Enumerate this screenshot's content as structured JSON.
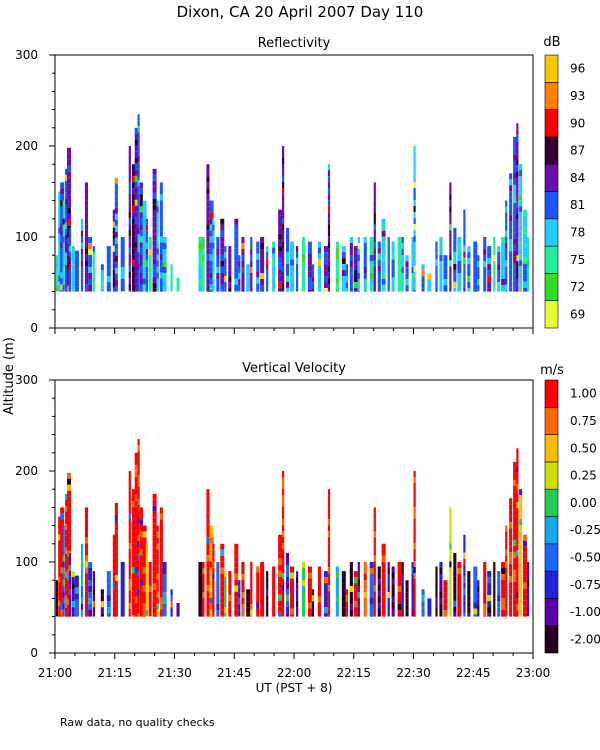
{
  "title": "Dixon, CA 20 April 2007  Day 110",
  "footnote": "Raw data, no quality checks",
  "chart_data": [
    {
      "type": "heatmap",
      "title": "Reflectivity",
      "ylabel": "Altitude (m)",
      "ylim": [
        0,
        300
      ],
      "yticks": [
        "0",
        "100",
        "200",
        "300"
      ],
      "xlim_minutes": [
        0,
        120
      ],
      "colorbar": {
        "unit": "dB",
        "labels": [
          "69",
          "72",
          "75",
          "78",
          "81",
          "84",
          "87",
          "90",
          "93",
          "96"
        ],
        "colors": [
          "#e6ff33",
          "#33dd22",
          "#22ee99",
          "#22ccff",
          "#1a55ff",
          "#6a0dad",
          "#330033",
          "#ff0000",
          "#ff7f00",
          "#ffc400"
        ]
      },
      "echoes": [
        {
          "t": 0.2,
          "top": 80,
          "dom": 2
        },
        {
          "t": 0.8,
          "top": 150,
          "dom": 3
        },
        {
          "t": 1.3,
          "top": 160,
          "dom": 4
        },
        {
          "t": 1.9,
          "top": 140,
          "dom": 3
        },
        {
          "t": 2.5,
          "top": 175,
          "dom": 4
        },
        {
          "t": 3.0,
          "top": 198,
          "dom": 5
        },
        {
          "t": 3.5,
          "top": 110,
          "dom": 4
        },
        {
          "t": 4.2,
          "top": 90,
          "dom": 3
        },
        {
          "t": 5.0,
          "top": 85,
          "dom": 4
        },
        {
          "t": 6.5,
          "top": 120,
          "dom": 4
        },
        {
          "t": 7.5,
          "top": 160,
          "dom": 5
        },
        {
          "t": 8.3,
          "top": 100,
          "dom": 4
        },
        {
          "t": 9.5,
          "top": 90,
          "dom": 3
        },
        {
          "t": 11.5,
          "top": 70,
          "dom": 3
        },
        {
          "t": 13.0,
          "top": 90,
          "dom": 4
        },
        {
          "t": 14.5,
          "top": 130,
          "dom": 5
        },
        {
          "t": 15.0,
          "top": 165,
          "dom": 4
        },
        {
          "t": 16.5,
          "top": 100,
          "dom": 4
        },
        {
          "t": 18.5,
          "top": 200,
          "dom": 5
        },
        {
          "t": 19.3,
          "top": 180,
          "dom": 6
        },
        {
          "t": 20.0,
          "top": 220,
          "dom": 5
        },
        {
          "t": 20.7,
          "top": 235,
          "dom": 4
        },
        {
          "t": 21.3,
          "top": 160,
          "dom": 5
        },
        {
          "t": 22.0,
          "top": 140,
          "dom": 3
        },
        {
          "t": 22.8,
          "top": 120,
          "dom": 4
        },
        {
          "t": 23.5,
          "top": 100,
          "dom": 2
        },
        {
          "t": 24.5,
          "top": 175,
          "dom": 5
        },
        {
          "t": 25.5,
          "top": 140,
          "dom": 3
        },
        {
          "t": 26.3,
          "top": 160,
          "dom": 4
        },
        {
          "t": 27.0,
          "top": 100,
          "dom": 3
        },
        {
          "t": 29.0,
          "top": 70,
          "dom": 2
        },
        {
          "t": 30.5,
          "top": 55,
          "dom": 2
        },
        {
          "t": 36.0,
          "top": 100,
          "dom": 2
        },
        {
          "t": 37.0,
          "top": 100,
          "dom": 2
        },
        {
          "t": 38.0,
          "top": 180,
          "dom": 5
        },
        {
          "t": 38.8,
          "top": 140,
          "dom": 4
        },
        {
          "t": 39.5,
          "top": 120,
          "dom": 3
        },
        {
          "t": 40.5,
          "top": 100,
          "dom": 4
        },
        {
          "t": 41.5,
          "top": 120,
          "dom": 5
        },
        {
          "t": 42.5,
          "top": 90,
          "dom": 4
        },
        {
          "t": 43.5,
          "top": 90,
          "dom": 5
        },
        {
          "t": 45.0,
          "top": 120,
          "dom": 4
        },
        {
          "t": 46.0,
          "top": 80,
          "dom": 4
        },
        {
          "t": 46.8,
          "top": 100,
          "dom": 5
        },
        {
          "t": 48.0,
          "top": 70,
          "dom": 3
        },
        {
          "t": 49.0,
          "top": 100,
          "dom": 5
        },
        {
          "t": 50.5,
          "top": 95,
          "dom": 4
        },
        {
          "t": 51.5,
          "top": 100,
          "dom": 5
        },
        {
          "t": 53.0,
          "top": 90,
          "dom": 4
        },
        {
          "t": 54.5,
          "top": 95,
          "dom": 3
        },
        {
          "t": 56.0,
          "top": 130,
          "dom": 5
        },
        {
          "t": 57.0,
          "top": 200,
          "dom": 5
        },
        {
          "t": 58.0,
          "top": 110,
          "dom": 4
        },
        {
          "t": 59.0,
          "top": 95,
          "dom": 3
        },
        {
          "t": 60.5,
          "top": 90,
          "dom": 4
        },
        {
          "t": 62.0,
          "top": 100,
          "dom": 2
        },
        {
          "t": 63.5,
          "top": 95,
          "dom": 5
        },
        {
          "t": 64.5,
          "top": 70,
          "dom": 4
        },
        {
          "t": 66.0,
          "top": 95,
          "dom": 3
        },
        {
          "t": 67.5,
          "top": 90,
          "dom": 5
        },
        {
          "t": 68.5,
          "top": 180,
          "dom": 5
        },
        {
          "t": 70.5,
          "top": 95,
          "dom": 2
        },
        {
          "t": 72.0,
          "top": 90,
          "dom": 3
        },
        {
          "t": 73.0,
          "top": 70,
          "dom": 4
        },
        {
          "t": 74.0,
          "top": 100,
          "dom": 4
        },
        {
          "t": 75.0,
          "top": 90,
          "dom": 5
        },
        {
          "t": 76.0,
          "top": 100,
          "dom": 3
        },
        {
          "t": 77.5,
          "top": 100,
          "dom": 4
        },
        {
          "t": 79.0,
          "top": 100,
          "dom": 2
        },
        {
          "t": 80.0,
          "top": 160,
          "dom": 5
        },
        {
          "t": 81.0,
          "top": 95,
          "dom": 4
        },
        {
          "t": 82.0,
          "top": 120,
          "dom": 3
        },
        {
          "t": 83.5,
          "top": 100,
          "dom": 4
        },
        {
          "t": 84.5,
          "top": 95,
          "dom": 3
        },
        {
          "t": 86.0,
          "top": 100,
          "dom": 2
        },
        {
          "t": 87.0,
          "top": 100,
          "dom": 3
        },
        {
          "t": 88.0,
          "top": 80,
          "dom": 4
        },
        {
          "t": 89.5,
          "top": 100,
          "dom": 3
        },
        {
          "t": 90.0,
          "top": 200,
          "dom": 3
        },
        {
          "t": 92.0,
          "top": 70,
          "dom": 4
        },
        {
          "t": 93.5,
          "top": 60,
          "dom": 3
        },
        {
          "t": 95.5,
          "top": 95,
          "dom": 4
        },
        {
          "t": 96.5,
          "top": 100,
          "dom": 3
        },
        {
          "t": 97.5,
          "top": 80,
          "dom": 4
        },
        {
          "t": 99.0,
          "top": 160,
          "dom": 5
        },
        {
          "t": 100.0,
          "top": 110,
          "dom": 4
        },
        {
          "t": 101.0,
          "top": 100,
          "dom": 3
        },
        {
          "t": 102.5,
          "top": 130,
          "dom": 4
        },
        {
          "t": 103.5,
          "top": 90,
          "dom": 3
        },
        {
          "t": 105.0,
          "top": 95,
          "dom": 4
        },
        {
          "t": 106.0,
          "top": 80,
          "dom": 3
        },
        {
          "t": 107.5,
          "top": 100,
          "dom": 4
        },
        {
          "t": 108.5,
          "top": 90,
          "dom": 4
        },
        {
          "t": 110.0,
          "top": 100,
          "dom": 2
        },
        {
          "t": 111.0,
          "top": 90,
          "dom": 4
        },
        {
          "t": 112.0,
          "top": 100,
          "dom": 3
        },
        {
          "t": 113.0,
          "top": 140,
          "dom": 4
        },
        {
          "t": 114.0,
          "top": 170,
          "dom": 4
        },
        {
          "t": 115.0,
          "top": 210,
          "dom": 4
        },
        {
          "t": 115.8,
          "top": 225,
          "dom": 5
        },
        {
          "t": 116.5,
          "top": 180,
          "dom": 3
        },
        {
          "t": 117.5,
          "top": 130,
          "dom": 3
        },
        {
          "t": 118.5,
          "top": 100,
          "dom": 2
        }
      ]
    },
    {
      "type": "heatmap",
      "title": "Vertical Velocity",
      "ylabel": "Altitude (m)",
      "ylim": [
        0,
        300
      ],
      "yticks": [
        "0",
        "100",
        "200",
        "300"
      ],
      "xlim_minutes": [
        0,
        120
      ],
      "xticks": [
        "21:00",
        "21:15",
        "21:30",
        "21:45",
        "22:00",
        "22:15",
        "22:30",
        "22:45",
        "23:00"
      ],
      "xlabel": "UT  (PST + 8)",
      "colorbar": {
        "unit": "m/s",
        "labels": [
          "-2.00",
          "-1.00",
          "-0.75",
          "-0.50",
          "-0.25",
          "0.00",
          "0.25",
          "0.50",
          "0.75",
          "1.00"
        ],
        "colors": [
          "#2a0020",
          "#5a00aa",
          "#2222dd",
          "#1a66ff",
          "#11aaee",
          "#22cc55",
          "#ccdd00",
          "#ffbb00",
          "#ff6600",
          "#ff0000"
        ]
      },
      "echoes": [
        {
          "t": 0.2,
          "top": 80,
          "dom": 0
        },
        {
          "t": 0.8,
          "top": 150,
          "dom": 9
        },
        {
          "t": 1.3,
          "top": 160,
          "dom": 9
        },
        {
          "t": 1.9,
          "top": 140,
          "dom": 3
        },
        {
          "t": 2.5,
          "top": 175,
          "dom": 9
        },
        {
          "t": 3.0,
          "top": 198,
          "dom": 9
        },
        {
          "t": 3.5,
          "top": 110,
          "dom": 2
        },
        {
          "t": 4.2,
          "top": 90,
          "dom": 1
        },
        {
          "t": 5.0,
          "top": 85,
          "dom": 3
        },
        {
          "t": 6.5,
          "top": 120,
          "dom": 4
        },
        {
          "t": 7.5,
          "top": 160,
          "dom": 9
        },
        {
          "t": 8.3,
          "top": 100,
          "dom": 2
        },
        {
          "t": 9.5,
          "top": 90,
          "dom": 1
        },
        {
          "t": 11.5,
          "top": 70,
          "dom": 0
        },
        {
          "t": 13.0,
          "top": 90,
          "dom": 3
        },
        {
          "t": 14.5,
          "top": 130,
          "dom": 9
        },
        {
          "t": 15.0,
          "top": 165,
          "dom": 9
        },
        {
          "t": 16.5,
          "top": 100,
          "dom": 2
        },
        {
          "t": 18.5,
          "top": 200,
          "dom": 9
        },
        {
          "t": 19.3,
          "top": 180,
          "dom": 9
        },
        {
          "t": 20.0,
          "top": 220,
          "dom": 9
        },
        {
          "t": 20.7,
          "top": 235,
          "dom": 9
        },
        {
          "t": 21.3,
          "top": 160,
          "dom": 9
        },
        {
          "t": 22.0,
          "top": 140,
          "dom": 9
        },
        {
          "t": 22.8,
          "top": 120,
          "dom": 6
        },
        {
          "t": 23.5,
          "top": 100,
          "dom": 9
        },
        {
          "t": 24.5,
          "top": 175,
          "dom": 9
        },
        {
          "t": 25.5,
          "top": 140,
          "dom": 9
        },
        {
          "t": 26.3,
          "top": 160,
          "dom": 9
        },
        {
          "t": 27.0,
          "top": 100,
          "dom": 3
        },
        {
          "t": 29.0,
          "top": 70,
          "dom": 2
        },
        {
          "t": 30.5,
          "top": 55,
          "dom": 1
        },
        {
          "t": 36.0,
          "top": 100,
          "dom": 0
        },
        {
          "t": 37.0,
          "top": 100,
          "dom": 9
        },
        {
          "t": 38.0,
          "top": 180,
          "dom": 9
        },
        {
          "t": 38.8,
          "top": 140,
          "dom": 7
        },
        {
          "t": 39.5,
          "top": 120,
          "dom": 9
        },
        {
          "t": 40.5,
          "top": 100,
          "dom": 3
        },
        {
          "t": 41.5,
          "top": 120,
          "dom": 9
        },
        {
          "t": 42.5,
          "top": 90,
          "dom": 5
        },
        {
          "t": 43.5,
          "top": 90,
          "dom": 9
        },
        {
          "t": 45.0,
          "top": 120,
          "dom": 9
        },
        {
          "t": 46.0,
          "top": 80,
          "dom": 2
        },
        {
          "t": 46.8,
          "top": 100,
          "dom": 9
        },
        {
          "t": 48.0,
          "top": 70,
          "dom": 0
        },
        {
          "t": 49.0,
          "top": 100,
          "dom": 9
        },
        {
          "t": 50.5,
          "top": 95,
          "dom": 9
        },
        {
          "t": 51.5,
          "top": 100,
          "dom": 9
        },
        {
          "t": 53.0,
          "top": 90,
          "dom": 0
        },
        {
          "t": 54.5,
          "top": 95,
          "dom": 9
        },
        {
          "t": 56.0,
          "top": 130,
          "dom": 9
        },
        {
          "t": 57.0,
          "top": 200,
          "dom": 9
        },
        {
          "t": 58.0,
          "top": 110,
          "dom": 2
        },
        {
          "t": 59.0,
          "top": 95,
          "dom": 9
        },
        {
          "t": 60.5,
          "top": 90,
          "dom": 1
        },
        {
          "t": 62.0,
          "top": 100,
          "dom": 5
        },
        {
          "t": 63.5,
          "top": 95,
          "dom": 9
        },
        {
          "t": 64.5,
          "top": 70,
          "dom": 0
        },
        {
          "t": 66.0,
          "top": 95,
          "dom": 9
        },
        {
          "t": 67.5,
          "top": 90,
          "dom": 2
        },
        {
          "t": 68.5,
          "top": 180,
          "dom": 9
        },
        {
          "t": 70.5,
          "top": 95,
          "dom": 4
        },
        {
          "t": 72.0,
          "top": 90,
          "dom": 0
        },
        {
          "t": 73.0,
          "top": 70,
          "dom": 9
        },
        {
          "t": 74.0,
          "top": 100,
          "dom": 0
        },
        {
          "t": 75.0,
          "top": 90,
          "dom": 9
        },
        {
          "t": 76.0,
          "top": 100,
          "dom": 1
        },
        {
          "t": 77.5,
          "top": 100,
          "dom": 8
        },
        {
          "t": 79.0,
          "top": 100,
          "dom": 3
        },
        {
          "t": 80.0,
          "top": 160,
          "dom": 9
        },
        {
          "t": 81.0,
          "top": 95,
          "dom": 0
        },
        {
          "t": 82.0,
          "top": 120,
          "dom": 9
        },
        {
          "t": 83.5,
          "top": 100,
          "dom": 2
        },
        {
          "t": 84.5,
          "top": 95,
          "dom": 0
        },
        {
          "t": 86.0,
          "top": 100,
          "dom": 9
        },
        {
          "t": 87.0,
          "top": 100,
          "dom": 1
        },
        {
          "t": 88.0,
          "top": 80,
          "dom": 0
        },
        {
          "t": 89.5,
          "top": 100,
          "dom": 2
        },
        {
          "t": 90.0,
          "top": 200,
          "dom": 9
        },
        {
          "t": 92.0,
          "top": 70,
          "dom": 3
        },
        {
          "t": 93.5,
          "top": 60,
          "dom": 2
        },
        {
          "t": 95.5,
          "top": 95,
          "dom": 0
        },
        {
          "t": 96.5,
          "top": 100,
          "dom": 1
        },
        {
          "t": 97.5,
          "top": 80,
          "dom": 9
        },
        {
          "t": 99.0,
          "top": 160,
          "dom": 6
        },
        {
          "t": 100.0,
          "top": 110,
          "dom": 0
        },
        {
          "t": 101.0,
          "top": 100,
          "dom": 9
        },
        {
          "t": 102.5,
          "top": 130,
          "dom": 2
        },
        {
          "t": 103.5,
          "top": 90,
          "dom": 0
        },
        {
          "t": 105.0,
          "top": 95,
          "dom": 3
        },
        {
          "t": 106.0,
          "top": 80,
          "dom": 1
        },
        {
          "t": 107.5,
          "top": 100,
          "dom": 9
        },
        {
          "t": 108.5,
          "top": 90,
          "dom": 2
        },
        {
          "t": 110.0,
          "top": 100,
          "dom": 0
        },
        {
          "t": 111.0,
          "top": 90,
          "dom": 3
        },
        {
          "t": 112.0,
          "top": 100,
          "dom": 9
        },
        {
          "t": 113.0,
          "top": 140,
          "dom": 9
        },
        {
          "t": 114.0,
          "top": 170,
          "dom": 9
        },
        {
          "t": 115.0,
          "top": 210,
          "dom": 9
        },
        {
          "t": 115.8,
          "top": 225,
          "dom": 9
        },
        {
          "t": 116.5,
          "top": 180,
          "dom": 7
        },
        {
          "t": 117.5,
          "top": 130,
          "dom": 9
        },
        {
          "t": 118.5,
          "top": 100,
          "dom": 1
        }
      ]
    }
  ]
}
